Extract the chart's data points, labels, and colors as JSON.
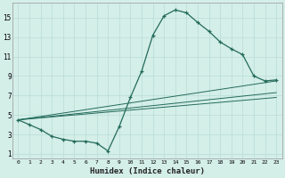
{
  "xlabel": "Humidex (Indice chaleur)",
  "ylabel": "",
  "xlim": [
    -0.5,
    23.5
  ],
  "ylim": [
    0.5,
    16.5
  ],
  "xticks": [
    0,
    1,
    2,
    3,
    4,
    5,
    6,
    7,
    8,
    9,
    10,
    11,
    12,
    13,
    14,
    15,
    16,
    17,
    18,
    19,
    20,
    21,
    22,
    23
  ],
  "yticks": [
    1,
    3,
    5,
    7,
    9,
    11,
    13,
    15
  ],
  "bg_color": "#d4eee8",
  "line_color": "#236b5a",
  "grid_color": "#b8ddd6",
  "main_x": [
    0,
    1,
    2,
    3,
    4,
    5,
    6,
    7,
    8,
    9,
    10,
    11,
    12,
    13,
    14,
    15,
    16,
    17,
    18,
    19,
    20,
    21,
    22,
    23
  ],
  "main_y": [
    4.5,
    4.0,
    3.5,
    2.8,
    2.5,
    2.3,
    2.3,
    2.1,
    1.3,
    3.8,
    6.8,
    9.5,
    13.2,
    15.2,
    15.8,
    15.5,
    14.5,
    13.6,
    12.5,
    11.8,
    11.2,
    9.0,
    8.5,
    8.6
  ],
  "trend1_x": [
    0,
    23
  ],
  "trend1_y": [
    4.5,
    8.5
  ],
  "trend2_x": [
    0,
    23
  ],
  "trend2_y": [
    4.5,
    7.3
  ],
  "trend3_x": [
    0,
    23
  ],
  "trend3_y": [
    4.5,
    6.8
  ]
}
